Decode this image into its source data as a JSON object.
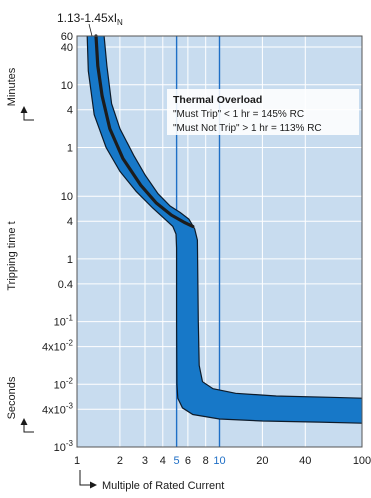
{
  "chart_data": {
    "type": "line",
    "top_label": "1.13-1.45xI",
    "top_label_subscript": "N",
    "ylabel": "Tripping time t",
    "ylabel_minutes": "Minutes",
    "ylabel_seconds": "Seconds",
    "xlabel": "Multiple of Rated Current",
    "x_scale": "log",
    "xlim": [
      1,
      100
    ],
    "x_ticks": [
      {
        "value": 1,
        "label": "1",
        "highlight": false
      },
      {
        "value": 2,
        "label": "2",
        "highlight": false
      },
      {
        "value": 3,
        "label": "3",
        "highlight": false
      },
      {
        "value": 4,
        "label": "4",
        "highlight": false
      },
      {
        "value": 5,
        "label": "5",
        "highlight": true
      },
      {
        "value": 6,
        "label": "6",
        "highlight": false
      },
      {
        "value": 8,
        "label": "8",
        "highlight": false
      },
      {
        "value": 10,
        "label": "10",
        "highlight": true
      },
      {
        "value": 20,
        "label": "20",
        "highlight": false
      },
      {
        "value": 40,
        "label": "40",
        "highlight": false
      },
      {
        "value": 100,
        "label": "100",
        "highlight": false
      }
    ],
    "y_scale": "log",
    "y_unit": "seconds",
    "ylim": [
      0.001,
      3600
    ],
    "y_ticks": [
      {
        "value": 3600,
        "label": "60",
        "base": "",
        "exp": ""
      },
      {
        "value": 2400,
        "label": "40",
        "base": "",
        "exp": ""
      },
      {
        "value": 600,
        "label": "10",
        "base": "",
        "exp": ""
      },
      {
        "value": 240,
        "label": "4",
        "base": "",
        "exp": ""
      },
      {
        "value": 60,
        "label": "1",
        "base": "",
        "exp": ""
      },
      {
        "value": 10,
        "label": "10",
        "base": "",
        "exp": ""
      },
      {
        "value": 4,
        "label": "4",
        "base": "",
        "exp": ""
      },
      {
        "value": 1,
        "label": "1",
        "base": "",
        "exp": ""
      },
      {
        "value": 0.4,
        "label": "0.4",
        "base": "",
        "exp": ""
      },
      {
        "value": 0.1,
        "label": "",
        "base": "10",
        "exp": "-1"
      },
      {
        "value": 0.04,
        "label": "",
        "base": "4x10",
        "exp": "-2"
      },
      {
        "value": 0.01,
        "label": "",
        "base": "10",
        "exp": "-2"
      },
      {
        "value": 0.004,
        "label": "",
        "base": "4x10",
        "exp": "-3"
      },
      {
        "value": 0.001,
        "label": "",
        "base": "10",
        "exp": "-3"
      }
    ],
    "grid": true,
    "band_upper": [
      [
        1.55,
        3600
      ],
      [
        1.62,
        1200
      ],
      [
        1.75,
        300
      ],
      [
        2.0,
        120
      ],
      [
        2.5,
        45
      ],
      [
        3.0,
        22
      ],
      [
        3.7,
        11
      ],
      [
        4.5,
        7
      ],
      [
        5.3,
        5.5
      ],
      [
        6.1,
        4.3
      ],
      [
        6.7,
        3
      ],
      [
        7.0,
        2
      ],
      [
        7.1,
        0.1
      ],
      [
        7.2,
        0.02
      ],
      [
        7.6,
        0.011
      ],
      [
        9,
        0.0085
      ],
      [
        13,
        0.0072
      ],
      [
        25,
        0.0065
      ],
      [
        60,
        0.0062
      ],
      [
        100,
        0.006
      ]
    ],
    "band_lower": [
      [
        1.18,
        3600
      ],
      [
        1.2,
        1000
      ],
      [
        1.32,
        200
      ],
      [
        1.6,
        60
      ],
      [
        2.0,
        25
      ],
      [
        2.6,
        12
      ],
      [
        3.4,
        6.5
      ],
      [
        4.2,
        4.2
      ],
      [
        4.7,
        3.3
      ],
      [
        4.95,
        2.5
      ],
      [
        5.0,
        1.5
      ],
      [
        5.0,
        0.1
      ],
      [
        5.02,
        0.01
      ],
      [
        5.1,
        0.006
      ],
      [
        5.5,
        0.0042
      ],
      [
        6.5,
        0.0033
      ],
      [
        10,
        0.0028
      ],
      [
        20,
        0.0026
      ],
      [
        50,
        0.0025
      ],
      [
        100,
        0.0024
      ]
    ],
    "typical_curve": [
      [
        1.36,
        3600
      ],
      [
        1.4,
        1200
      ],
      [
        1.5,
        400
      ],
      [
        1.7,
        120
      ],
      [
        2.1,
        40
      ],
      [
        2.8,
        15
      ],
      [
        3.6,
        7.8
      ],
      [
        4.6,
        5
      ],
      [
        5.7,
        3.8
      ],
      [
        6.5,
        3.3
      ]
    ],
    "annotation": {
      "title": "Thermal Overload",
      "line1": "\"Must Trip\" < 1 hr = 145% RC",
      "line2": "\"Must Not Trip\" > 1 hr = 113% RC"
    },
    "colors": {
      "background": "#c8dcef",
      "band": "#1778c8",
      "band_edge": "#0d1b2a",
      "curve": "#1c1c1c",
      "highlight": "#1f6fc6",
      "annotation_bg": "#ffffff"
    }
  }
}
